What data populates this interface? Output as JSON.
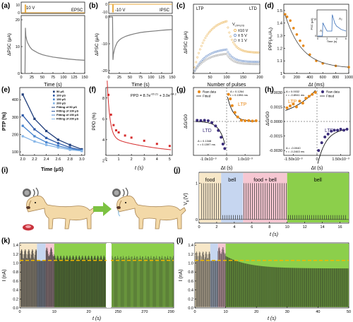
{
  "panel_labels": [
    "(a)",
    "(b)",
    "(c)",
    "(d)",
    "(e)",
    "(f)",
    "(g)",
    "(h)",
    "(i)",
    "(j)",
    "(k)",
    "(l)"
  ],
  "colors": {
    "pulse": "#e8a93b",
    "trace": "#7d7d7d",
    "red": "#d62d2d",
    "orange": "#e88a1a",
    "purple": "#3b2d7a",
    "blue": "#5b84c4",
    "food_bg": "#f7e7c8",
    "bell_bg": "#c6d6f0",
    "foodbell_bg": "#f6c7d2",
    "green_bg": "#8ccf4b",
    "yellow_dash": "#f0b800"
  },
  "chart_data": [
    {
      "id": "a",
      "type": "line",
      "pulse_label": "10 V",
      "legend": "EPSC",
      "ylabel": "ΔPSC (μA)",
      "xlabel": "Time (s)",
      "xlim": [
        0,
        150
      ],
      "ylim": [
        0,
        20
      ],
      "xticks": [
        0,
        25,
        50,
        75,
        100,
        125,
        150
      ],
      "yticks": [
        0,
        10,
        20
      ],
      "pulse_ticks": [
        0,
        10
      ],
      "x": [
        0,
        9,
        10,
        11,
        13,
        15,
        20,
        25,
        30,
        40,
        50,
        60,
        75,
        90,
        110,
        130,
        150
      ],
      "y": [
        0,
        0,
        17,
        14,
        12.5,
        11.5,
        10,
        9,
        8.5,
        7.6,
        7,
        6.6,
        6.1,
        5.8,
        5.4,
        5.1,
        4.9
      ]
    },
    {
      "id": "b",
      "type": "line",
      "pulse_label": "-10 V",
      "legend": "IPSC",
      "ylabel": "ΔPSC (μA)",
      "xlabel": "Time (s)",
      "xlim": [
        0,
        150
      ],
      "ylim": [
        -20,
        0
      ],
      "xticks": [
        0,
        25,
        50,
        75,
        100,
        125,
        150
      ],
      "yticks": [
        -20,
        -10,
        0
      ],
      "pulse_ticks": [
        -10,
        0
      ],
      "x": [
        0,
        9,
        10,
        11,
        13,
        15,
        20,
        25,
        30,
        40,
        50,
        60,
        75,
        90,
        110,
        130,
        150
      ],
      "y": [
        0,
        0,
        -16,
        -14,
        -12.5,
        -11.3,
        -9.5,
        -8.6,
        -8,
        -7.2,
        -6.7,
        -6.3,
        -5.8,
        -5.5,
        -5.2,
        -4.9,
        -4.7
      ]
    },
    {
      "id": "c",
      "type": "scatter",
      "ylabel": "ΔPSC (μA)",
      "xlabel": "Number of pulses",
      "corner_left": "LTP",
      "corner_right": "LTD",
      "xticks": [
        0,
        50,
        100,
        150,
        200
      ],
      "xlim": [
        0,
        200
      ],
      "ylim": [
        0,
        30
      ],
      "legend_title": "V",
      "legend_title_sub": "LTP/LTD",
      "legend": [
        "±10 V",
        "± 5 V",
        "± 1 V"
      ],
      "series": [
        {
          "name": "±10 V",
          "color": "#e8a93b",
          "peak": 24,
          "end": 9
        },
        {
          "name": "± 5 V",
          "color": "#5b84c4",
          "peak": 11,
          "end": 5
        },
        {
          "name": "± 1 V",
          "color": "#9a9a9a",
          "peak": 9,
          "end": 4
        }
      ]
    },
    {
      "id": "d",
      "type": "scatter",
      "ylabel": "PPF(A₂/A₁)",
      "xlabel": "Δt (ms)",
      "xticks": [
        0,
        200,
        400,
        600,
        800,
        1000
      ],
      "yticks": [
        1.0,
        1.1,
        1.2,
        1.3,
        1.4,
        1.5
      ],
      "xlim": [
        0,
        1000
      ],
      "ylim": [
        1.0,
        1.55
      ],
      "x": [
        20,
        50,
        100,
        150,
        200,
        250,
        300,
        400,
        500,
        600,
        800,
        1000
      ],
      "y": [
        1.47,
        1.45,
        1.42,
        1.36,
        1.31,
        1.26,
        1.22,
        1.15,
        1.1,
        1.08,
        1.06,
        1.05
      ],
      "inset": {
        "ylabel": "PSC (μA)",
        "xlabel": "Time (s)",
        "xticks": [
          0,
          2,
          4,
          6
        ],
        "yticks": [
          0,
          10
        ],
        "labels": [
          "A₁",
          "A₂"
        ]
      }
    },
    {
      "id": "e",
      "type": "line",
      "ylabel": "PTP (%)",
      "xlabel": "Time (μS)",
      "xticks": [
        2.0,
        2.2,
        2.4,
        2.6,
        2.8,
        3.0
      ],
      "yticks": [
        100,
        200,
        300,
        400
      ],
      "xlim": [
        1.95,
        3.05
      ],
      "ylim": [
        80,
        470
      ],
      "legend": [
        "50 μS",
        "100 μS",
        "150 μS",
        "200 μS",
        "Fitting of 50 μS",
        "Fitting of 100 μS",
        "Fitting of 150 μS",
        "Fitting of 200 μS"
      ],
      "x": [
        2.0,
        2.2,
        2.4,
        2.6,
        2.8,
        3.0
      ],
      "series": [
        {
          "name": "50 μS",
          "color": "#1f3d7a",
          "values": [
            430,
            290,
            220,
            170,
            140,
            115
          ]
        },
        {
          "name": "100 μS",
          "color": "#2e5aa8",
          "values": [
            310,
            230,
            180,
            150,
            125,
            110
          ]
        },
        {
          "name": "150 μS",
          "color": "#4a86d0",
          "values": [
            250,
            190,
            155,
            135,
            118,
            108
          ]
        },
        {
          "name": "200 μS",
          "color": "#86b6e8",
          "values": [
            190,
            160,
            140,
            125,
            112,
            105
          ]
        }
      ]
    },
    {
      "id": "f",
      "type": "scatter",
      "ylabel": "PPD (%)",
      "xlabel": "t (s)",
      "formula": "PPD = 8.7e",
      "formula_exp1": "-t/0.21",
      "formula_mid": " + 3.0e",
      "formula_exp2": "-t/4.2",
      "xticks": [
        0,
        1,
        2,
        3,
        4,
        5
      ],
      "yticks": [
        2,
        4,
        6,
        8
      ],
      "xlim": [
        0,
        5.2
      ],
      "ylim": [
        2.5,
        9
      ],
      "x": [
        0.2,
        0.4,
        0.6,
        0.8,
        1,
        1.5,
        2,
        3,
        4,
        5
      ],
      "y": [
        8.3,
        6.4,
        5.4,
        4.9,
        4.7,
        4.4,
        4.2,
        3.9,
        3.6,
        3.4
      ]
    },
    {
      "id": "g",
      "type": "scatter",
      "ylabel": "ΔG/G0",
      "xlabel": "Δt (s)",
      "legend": [
        "Raw data",
        "Fitted"
      ],
      "xticks_labels": [
        "-1.0x10⁻³",
        "0",
        "1.0x10⁻³"
      ],
      "ltp_label": "LTP",
      "ltd_label": "LTD",
      "ann_ltp": [
        "A = 0.1264",
        "τ = 0.1594 ms"
      ],
      "ann_ltd": [
        "A = 0.1348",
        "τ = 0.1597 ms"
      ],
      "x_ltd": [
        -1.6,
        -1.4,
        -1.2,
        -1.0,
        -0.8,
        -0.6,
        -0.45,
        -0.3,
        -0.2,
        -0.1
      ],
      "y_ltd": [
        0.005,
        0.004,
        0.005,
        0.003,
        -0.005,
        -0.02,
        -0.04,
        -0.07,
        -0.1,
        -0.12
      ],
      "x_ltp": [
        0.1,
        0.2,
        0.3,
        0.45,
        0.6,
        0.8,
        1.0,
        1.2,
        1.4,
        1.6
      ],
      "y_ltp": [
        0.12,
        0.1,
        0.07,
        0.04,
        0.02,
        0.005,
        0.003,
        0.004,
        0.002,
        0.003
      ]
    },
    {
      "id": "h",
      "type": "scatter",
      "ylabel": "ΔG/G0",
      "xlabel": "Δt (s)",
      "legend": [
        "Raw data",
        "Fitted"
      ],
      "xticks_labels": [
        "-1.50x10⁻³",
        "0",
        "1.50x10⁻³"
      ],
      "yticks_labels": [
        "0.0030",
        "0.0015",
        "0.0000",
        "-0.0015",
        "-0.0030"
      ],
      "ltp_label": "LTP",
      "ltd_label": "LTD",
      "ann_ltp": [
        "A = 0.0032",
        "τ = -0.8941 ms"
      ],
      "ann_ltd": [
        "A = -0.0040",
        "τ = -0.2463 ms"
      ],
      "x_ltp": [
        -1.9,
        -1.7,
        -1.5,
        -1.3,
        -1.1,
        -0.9,
        -0.7,
        -0.5,
        -0.3,
        -0.1
      ],
      "y_ltp": [
        0.0014,
        0.0016,
        0.0018,
        0.0015,
        0.0021,
        0.0019,
        0.0024,
        0.0026,
        0.0028,
        0.003
      ],
      "x_ltd": [
        0.1,
        0.3,
        0.5,
        0.7,
        0.9,
        1.1,
        1.3,
        1.5,
        1.7,
        1.9
      ],
      "y_ltd": [
        -0.003,
        -0.0022,
        -0.0016,
        -0.0013,
        -0.001,
        -0.0009,
        -0.0009,
        -0.0008,
        -0.0009,
        -0.0008
      ]
    },
    {
      "id": "j",
      "type": "bar",
      "ylabel": "V",
      "ylabel_sub": "g",
      "unit": "(V)",
      "xlabel": "t (s)",
      "xticks": [
        0,
        2,
        4,
        6,
        8,
        10,
        12,
        14,
        16
      ],
      "yticks": [
        0,
        1
      ],
      "xlim": [
        0,
        17
      ],
      "ylim": [
        -0.1,
        1.3
      ],
      "phases": [
        {
          "label": "food",
          "start": 0,
          "end": 2.5
        },
        {
          "label": "bell",
          "start": 2.5,
          "end": 5
        },
        {
          "label": "food + bell",
          "start": 5,
          "end": 10
        },
        {
          "label": "bell",
          "start": 10,
          "end": 17
        }
      ]
    },
    {
      "id": "k",
      "type": "bar",
      "ylabel": "I (nA)",
      "xlabel": "t (s)",
      "xticks_left": [
        0,
        10,
        20
      ],
      "xticks_right": [
        250,
        270,
        290
      ],
      "yticks": [
        0.0,
        0.2,
        0.4,
        0.6,
        0.8,
        1.0,
        1.2,
        1.4
      ],
      "ylim": [
        0,
        1.45
      ],
      "threshold": 1.06
    },
    {
      "id": "l",
      "type": "bar",
      "ylabel": "I (nA)",
      "xlabel": "t (s)",
      "xticks": [
        0,
        10,
        20,
        30,
        40,
        50
      ],
      "yticks": [
        0.0,
        0.2,
        0.4,
        0.6,
        0.8,
        1.0,
        1.2,
        1.4
      ],
      "xlim": [
        0,
        50
      ],
      "ylim": [
        0,
        1.45
      ],
      "threshold": 1.06
    }
  ]
}
